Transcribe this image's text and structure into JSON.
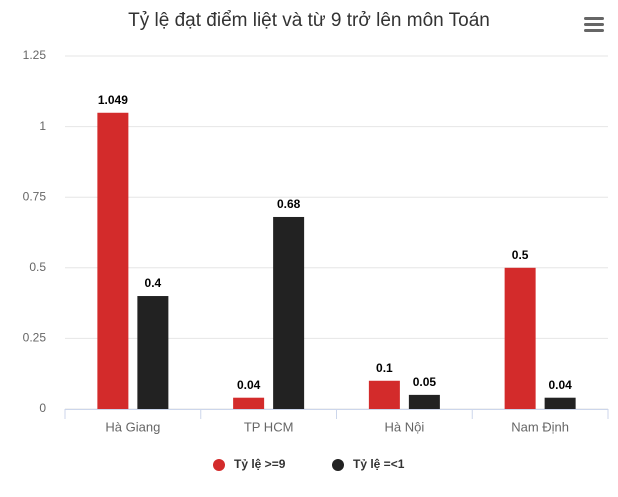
{
  "chart_data": {
    "type": "bar",
    "title": "Tỷ lệ đạt điểm liệt và từ 9 trở lên môn Toán",
    "categories": [
      "Hà Giang",
      "TP HCM",
      "Hà Nội",
      "Nam Định"
    ],
    "series": [
      {
        "name": "Tỷ lệ >=9",
        "color": "#d32b2b",
        "values": [
          1.049,
          0.04,
          0.1,
          0.5
        ]
      },
      {
        "name": "Tỷ lệ =<1",
        "color": "#222222",
        "values": [
          0.4,
          0.68,
          0.05,
          0.04
        ]
      }
    ],
    "ylim": [
      0,
      1.25
    ],
    "yticks": [
      0,
      0.25,
      0.5,
      0.75,
      1,
      1.25
    ],
    "grid": true,
    "legend": "bottom"
  }
}
